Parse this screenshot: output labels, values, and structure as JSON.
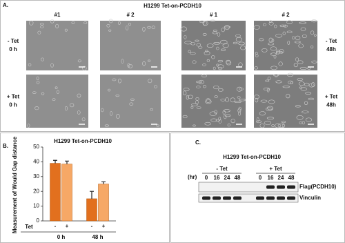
{
  "panel_a": {
    "label": "A.",
    "title": "H1299  Tet-on-PCDH10",
    "columns": [
      "#1",
      "# 2",
      "# 1",
      "# 2"
    ],
    "rows_left": [
      [
        "- Tet",
        "0 h"
      ],
      [
        "+ Tet",
        "0 h"
      ]
    ],
    "rows_right": [
      [
        "- Tet",
        "48h"
      ],
      [
        "+ Tet",
        "48h"
      ]
    ]
  },
  "chart_data": {
    "type": "bar",
    "label": "B.",
    "title": "H1299  Tet-on-PCDH10",
    "ylabel": "Measurement of Would Gap distance",
    "xlabel": "Tet",
    "categories": [
      "0 h",
      "48 h"
    ],
    "series": [
      {
        "name": "-",
        "color": "#e2701e",
        "values": [
          39,
          15
        ],
        "errors": [
          2,
          5
        ]
      },
      {
        "name": "+",
        "color": "#f6a866",
        "values": [
          38.5,
          25
        ],
        "errors": [
          2,
          1.5
        ]
      }
    ],
    "ylim": [
      0,
      50
    ],
    "yticks": [
      0,
      10,
      20,
      30,
      40,
      50
    ]
  },
  "panel_c": {
    "label": "C.",
    "title": "H1299  Tet-on-PCDH10",
    "unit": "(hr)",
    "groups": [
      {
        "label": "- Tet",
        "times": [
          "0",
          "16",
          "24",
          "48"
        ]
      },
      {
        "label": "+ Tet",
        "times": [
          "0",
          "16",
          "24",
          "48"
        ]
      }
    ],
    "bands": [
      "Flag(PCDH10)",
      "Vinculin"
    ]
  }
}
